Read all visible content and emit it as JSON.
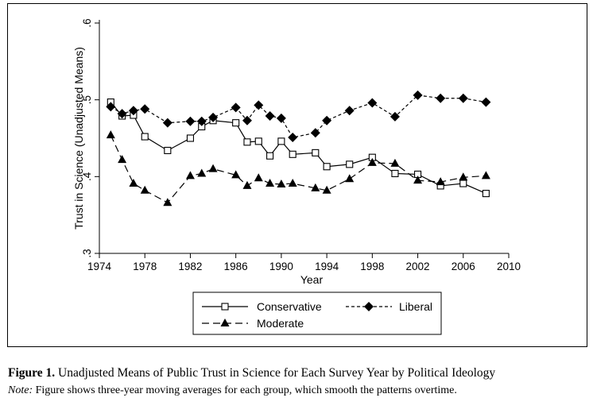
{
  "chart_data": {
    "type": "line",
    "ylabel": "Trust in Science (Unadjusted Means)",
    "xlabel": "Year",
    "xlim": [
      1974,
      2010
    ],
    "ylim": [
      0.3,
      0.6
    ],
    "xticks": [
      1974,
      1978,
      1982,
      1986,
      1990,
      1994,
      1998,
      2002,
      2006,
      2010
    ],
    "xtick_labels": [
      "1974",
      "1978",
      "1982",
      "1986",
      "1990",
      "1994",
      "1998",
      "2002",
      "2006",
      "2010"
    ],
    "yticks": [
      0.3,
      0.4,
      0.5,
      0.6
    ],
    "ytick_labels": [
      ".3",
      ".4",
      ".5",
      ".6"
    ],
    "grid": false,
    "legend_position": "bottom",
    "series": [
      {
        "name": "Conservative",
        "marker": "hollow-square",
        "line": "solid",
        "x": [
          1975,
          1976,
          1977,
          1978,
          1980,
          1982,
          1983,
          1984,
          1986,
          1987,
          1988,
          1989,
          1990,
          1991,
          1993,
          1994,
          1996,
          1998,
          2000,
          2002,
          2004,
          2006,
          2008
        ],
        "y": [
          0.497,
          0.479,
          0.48,
          0.452,
          0.434,
          0.45,
          0.465,
          0.473,
          0.47,
          0.445,
          0.446,
          0.427,
          0.446,
          0.429,
          0.431,
          0.413,
          0.416,
          0.425,
          0.404,
          0.403,
          0.388,
          0.391,
          0.378
        ]
      },
      {
        "name": "Liberal",
        "marker": "diamond",
        "line": "short-dash",
        "x": [
          1975,
          1976,
          1977,
          1978,
          1980,
          1982,
          1983,
          1984,
          1986,
          1987,
          1988,
          1989,
          1990,
          1991,
          1993,
          1994,
          1996,
          1998,
          2000,
          2002,
          2004,
          2006,
          2008
        ],
        "y": [
          0.491,
          0.482,
          0.486,
          0.488,
          0.47,
          0.472,
          0.472,
          0.477,
          0.49,
          0.473,
          0.493,
          0.479,
          0.476,
          0.451,
          0.457,
          0.473,
          0.486,
          0.496,
          0.478,
          0.506,
          0.502,
          0.502,
          0.497
        ]
      },
      {
        "name": "Moderate",
        "marker": "triangle",
        "line": "long-dash",
        "x": [
          1975,
          1976,
          1977,
          1978,
          1980,
          1982,
          1983,
          1984,
          1986,
          1987,
          1988,
          1989,
          1990,
          1991,
          1993,
          1994,
          1996,
          1998,
          2000,
          2002,
          2004,
          2006,
          2008
        ],
        "y": [
          0.454,
          0.422,
          0.391,
          0.382,
          0.366,
          0.401,
          0.404,
          0.41,
          0.402,
          0.388,
          0.398,
          0.391,
          0.39,
          0.391,
          0.385,
          0.382,
          0.397,
          0.418,
          0.417,
          0.395,
          0.393,
          0.399,
          0.401
        ]
      }
    ]
  },
  "caption": {
    "label": "Figure 1.",
    "title": "Unadjusted Means of Public Trust in Science for Each Survey Year by Political Ideology",
    "note_label": "Note:",
    "note": "Figure shows three-year moving averages for each group, which smooth the patterns overtime."
  }
}
